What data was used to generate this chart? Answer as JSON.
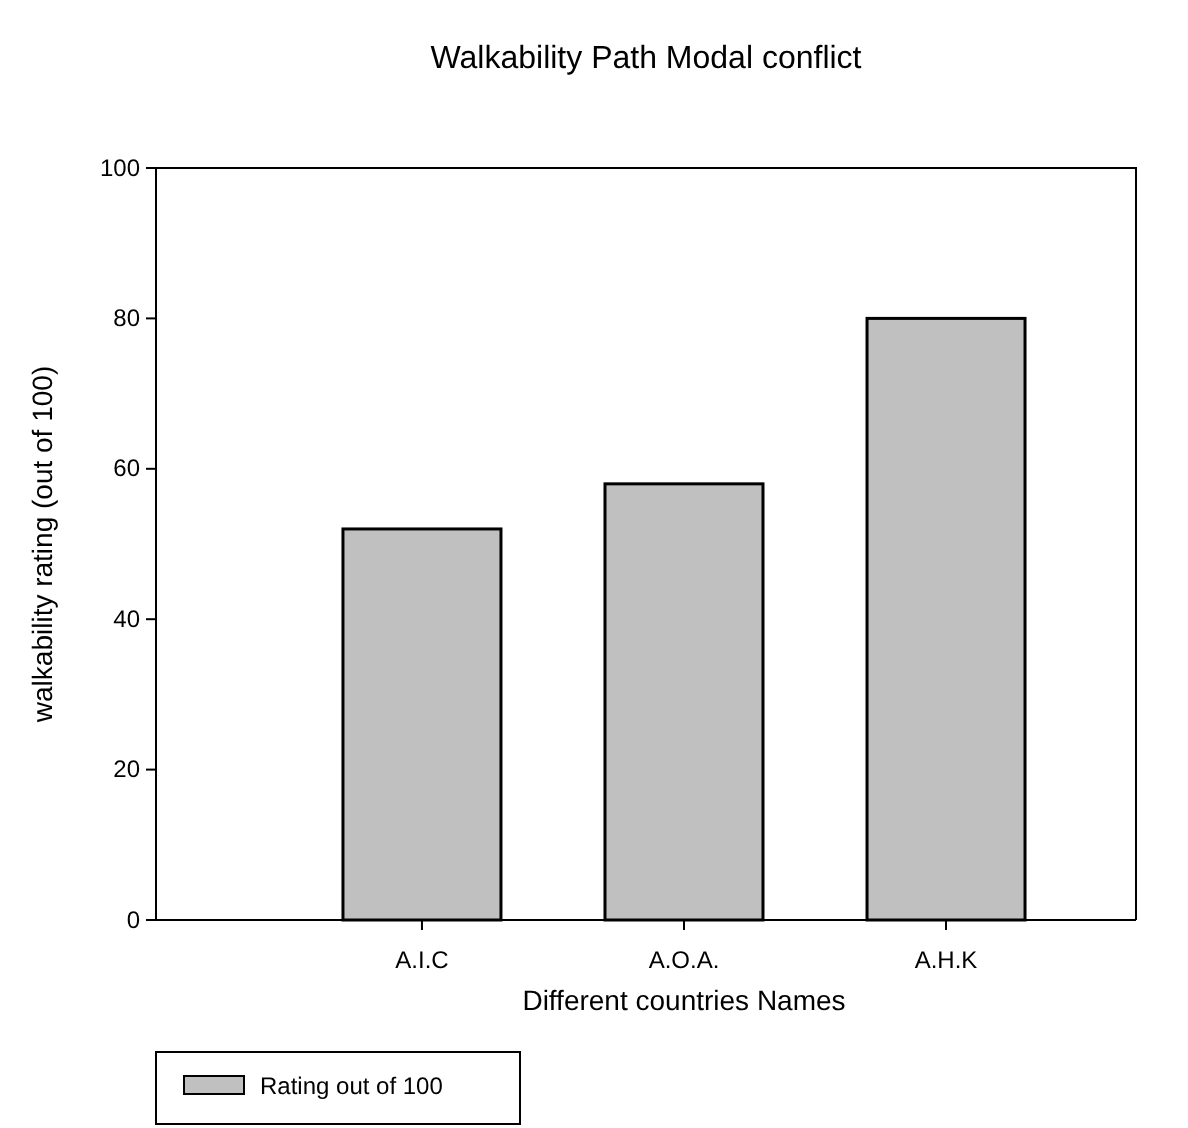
{
  "chart_data": {
    "type": "bar",
    "title": "Walkability Path Modal conflict",
    "xlabel": "Different countries Names",
    "ylabel": "walkability rating (out of 100)",
    "categories": [
      "A.I.C",
      "A.O.A.",
      "A.H.K"
    ],
    "series": [
      {
        "name": "Rating out of 100",
        "color": "#c0c0c0",
        "values": [
          52,
          58,
          80
        ]
      }
    ],
    "ylim": [
      0,
      100
    ],
    "yticks": [
      0,
      20,
      40,
      60,
      80,
      100
    ],
    "grid": false,
    "legend": "bottom left"
  }
}
